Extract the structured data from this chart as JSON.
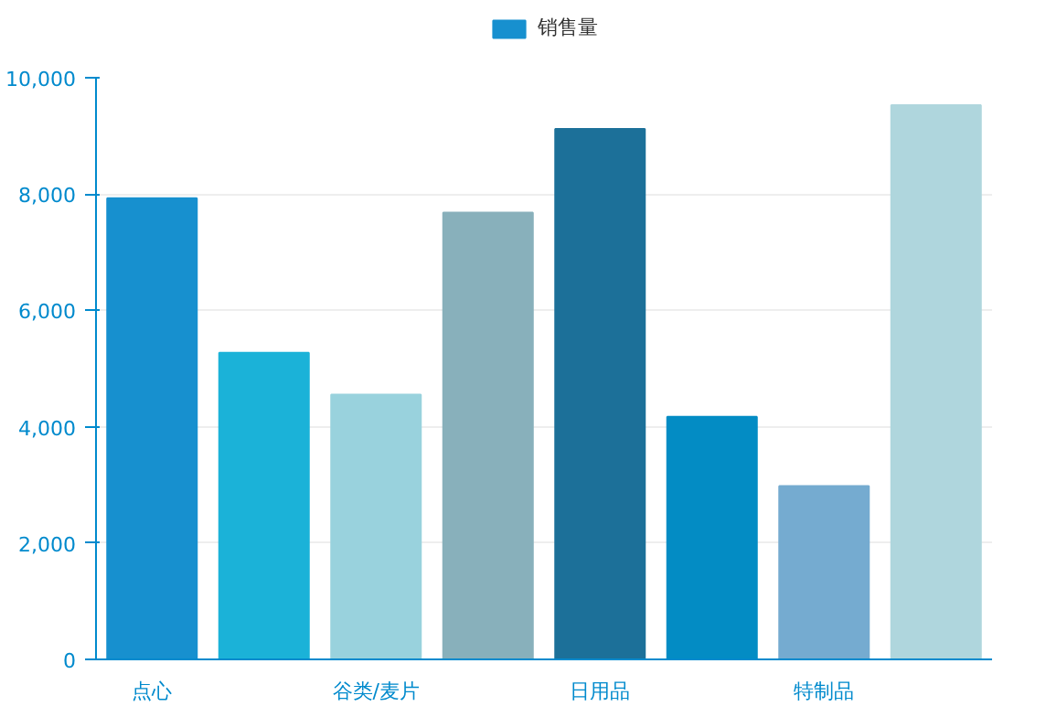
{
  "chart_data": {
    "type": "bar",
    "categories": [
      "点心",
      null,
      "谷类/麦片",
      null,
      "日用品",
      null,
      "特制品",
      null
    ],
    "series": [
      {
        "name": "销售量",
        "values": [
          7930,
          5270,
          4550,
          7680,
          9120,
          4170,
          2980,
          9530
        ],
        "colors": [
          "#1790cf",
          "#1bb2d8",
          "#99d2dd",
          "#88b0bb",
          "#1c7099",
          "#038cc4",
          "#75abd0",
          "#afd6dd"
        ]
      }
    ],
    "ylim": [
      0,
      10000
    ],
    "yticks": [
      0,
      {
        "value": 2000,
        "label": "2,000"
      },
      {
        "value": 4000,
        "label": "4,000"
      },
      {
        "value": 6000,
        "label": "6,000"
      },
      {
        "value": 8000,
        "label": "8,000"
      },
      {
        "value": 10000,
        "label": "10,000"
      }
    ],
    "grid": "y",
    "legend": "top"
  }
}
